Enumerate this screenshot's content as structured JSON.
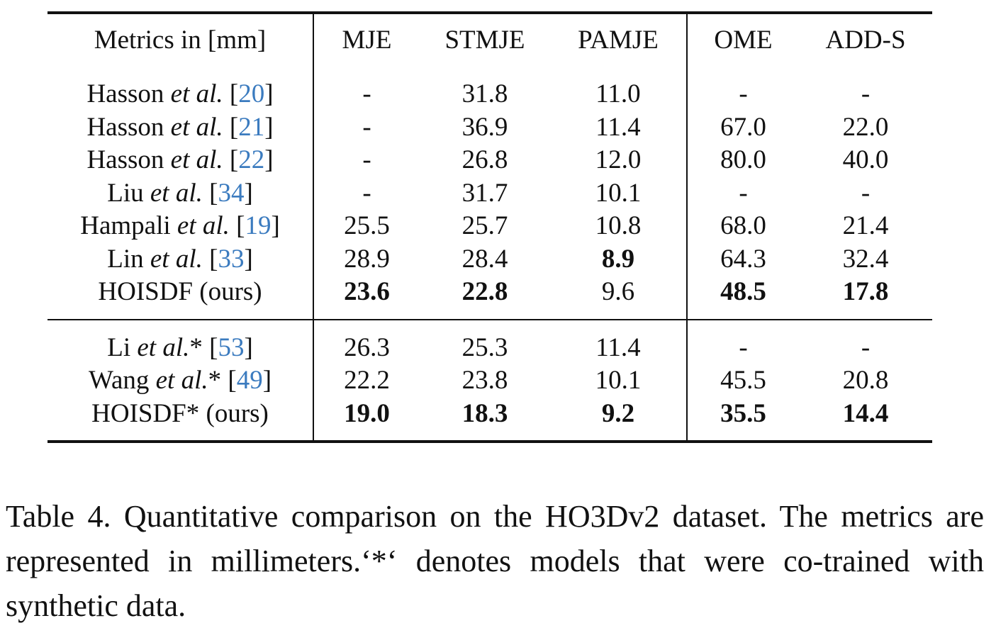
{
  "table": {
    "headers": [
      "Metrics in [mm]",
      "MJE",
      "STMJE",
      "PAMJE",
      "OME",
      "ADD-S"
    ],
    "groups": [
      {
        "rows": [
          {
            "author": "Hasson",
            "etal": "et al.",
            "cite": "20",
            "cells": [
              "-",
              "31.8",
              "11.0",
              "-",
              "-"
            ],
            "bold": []
          },
          {
            "author": "Hasson",
            "etal": "et al.",
            "cite": "21",
            "cells": [
              "-",
              "36.9",
              "11.4",
              "67.0",
              "22.0"
            ],
            "bold": []
          },
          {
            "author": "Hasson",
            "etal": "et al.",
            "cite": "22",
            "cells": [
              "-",
              "26.8",
              "12.0",
              "80.0",
              "40.0"
            ],
            "bold": []
          },
          {
            "author": "Liu",
            "etal": "et al.",
            "cite": "34",
            "cells": [
              "-",
              "31.7",
              "10.1",
              "-",
              "-"
            ],
            "bold": []
          },
          {
            "author": "Hampali",
            "etal": "et al.",
            "cite": "19",
            "cells": [
              "25.5",
              "25.7",
              "10.8",
              "68.0",
              "21.4"
            ],
            "bold": []
          },
          {
            "author": "Lin",
            "etal": "et al.",
            "cite": "33",
            "cells": [
              "28.9",
              "28.4",
              "8.9",
              "64.3",
              "32.4"
            ],
            "bold": [
              2
            ]
          },
          {
            "author": "HOISDF (ours)",
            "etal": "",
            "cite": "",
            "cells": [
              "23.6",
              "22.8",
              "9.6",
              "48.5",
              "17.8"
            ],
            "bold": [
              0,
              1,
              3,
              4
            ]
          }
        ]
      },
      {
        "rows": [
          {
            "author": "Li",
            "etal": "et al.",
            "star": "*",
            "cite": "53",
            "cells": [
              "26.3",
              "25.3",
              "11.4",
              "-",
              "-"
            ],
            "bold": []
          },
          {
            "author": "Wang",
            "etal": "et al.",
            "star": "*",
            "cite": "49",
            "cells": [
              "22.2",
              "23.8",
              "10.1",
              "45.5",
              "20.8"
            ],
            "bold": []
          },
          {
            "author": "HOISDF* (ours)",
            "etal": "",
            "cite": "",
            "cells": [
              "19.0",
              "18.3",
              "9.2",
              "35.5",
              "14.4"
            ],
            "bold": [
              0,
              1,
              2,
              3,
              4
            ]
          }
        ]
      }
    ]
  },
  "caption": "Table 4.  Quantitative comparison on the HO3Dv2 dataset. The metrics are represented in millimeters.‘*‘ denotes models that were co-trained with synthetic data."
}
